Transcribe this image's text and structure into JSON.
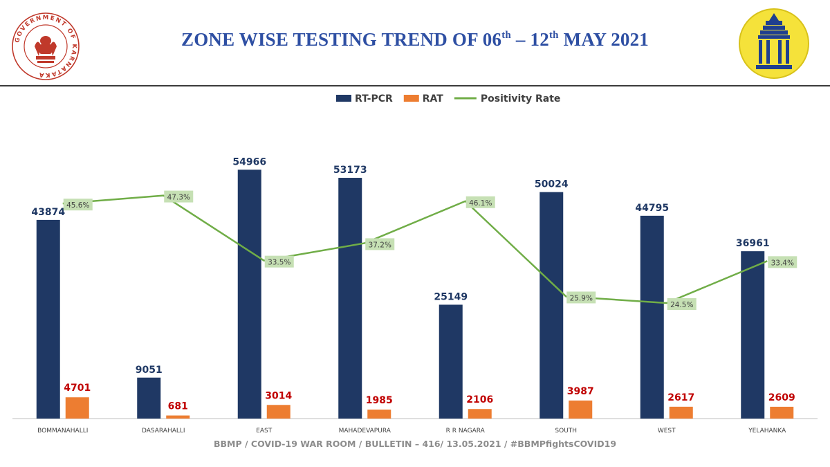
{
  "header": {
    "title_main": "ZONE WISE TESTING TREND OF 06",
    "title_sup1": "th",
    "title_mid": " – 12",
    "title_sup2": "th",
    "title_end": " MAY 2021",
    "left_logo": {
      "icon": "government-of-karnataka-seal-icon",
      "ring_text": "GOVERNMENT OF KARNATAKA",
      "color": "#c0392b"
    },
    "right_logo": {
      "icon": "bbmp-emblem-icon",
      "color": "#f5e23a"
    }
  },
  "footer": {
    "text": "BBMP / COVID-19 WAR ROOM / BULLETIN – 416/ 13.05.2021 / #BBMPfightsCOVID19"
  },
  "chart_data": {
    "type": "bar",
    "title": "ZONE WISE TESTING TREND OF 06th – 12th MAY 2021",
    "categories": [
      "BOMMANAHALLI",
      "DASARAHALLI",
      "EAST",
      "MAHADEVAPURA",
      "R R NAGARA",
      "SOUTH",
      "WEST",
      "YELAHANKA"
    ],
    "series": [
      {
        "name": "RT-PCR",
        "type": "bar",
        "color": "#1f3864",
        "label_color": "#1f3864",
        "values": [
          43874,
          9051,
          54966,
          53173,
          25149,
          50024,
          44795,
          36961
        ]
      },
      {
        "name": "RAT",
        "type": "bar",
        "color": "#ed7d31",
        "label_color": "#c00000",
        "values": [
          4701,
          681,
          3014,
          1985,
          2106,
          3987,
          2617,
          2609
        ]
      },
      {
        "name": "Positivity Rate",
        "type": "line",
        "axis": "secondary",
        "color": "#70ad47",
        "label_bg": "#c6e0b4",
        "values": [
          45.6,
          47.3,
          33.5,
          37.2,
          46.1,
          25.9,
          24.5,
          33.4
        ],
        "labels": [
          "45.6%",
          "47.3%",
          "33.5%",
          "37.2%",
          "46.1%",
          "25.9%",
          "24.5%",
          "33.4%"
        ]
      }
    ],
    "ylim": [
      0,
      62500
    ],
    "y2lim": [
      0,
      60
    ],
    "legend_position": "top",
    "grid": false
  }
}
